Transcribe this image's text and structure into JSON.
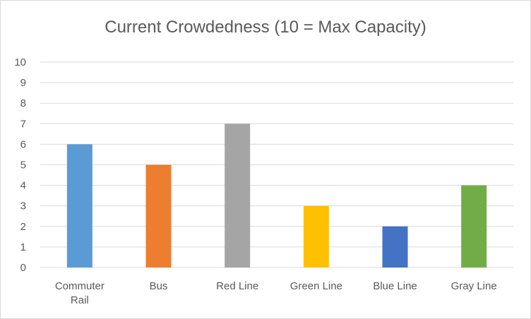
{
  "chart_data": {
    "type": "bar",
    "title": "Current Crowdedness (10 = Max Capacity)",
    "categories": [
      [
        "Commuter",
        "Rail"
      ],
      [
        "Bus"
      ],
      [
        "Red Line"
      ],
      [
        "Green Line"
      ],
      [
        "Blue Line"
      ],
      [
        "Gray Line"
      ]
    ],
    "values": [
      6,
      5,
      7,
      3,
      2,
      4
    ],
    "colors": [
      "#5b9bd5",
      "#ed7d31",
      "#a5a5a5",
      "#ffc000",
      "#4472c4",
      "#70ad47"
    ],
    "ylim": [
      0,
      10
    ],
    "yticks": [
      "0",
      "1",
      "2",
      "3",
      "4",
      "5",
      "6",
      "7",
      "8",
      "9",
      "10"
    ],
    "grid": true,
    "legend": "none",
    "xlabel": "",
    "ylabel": ""
  }
}
